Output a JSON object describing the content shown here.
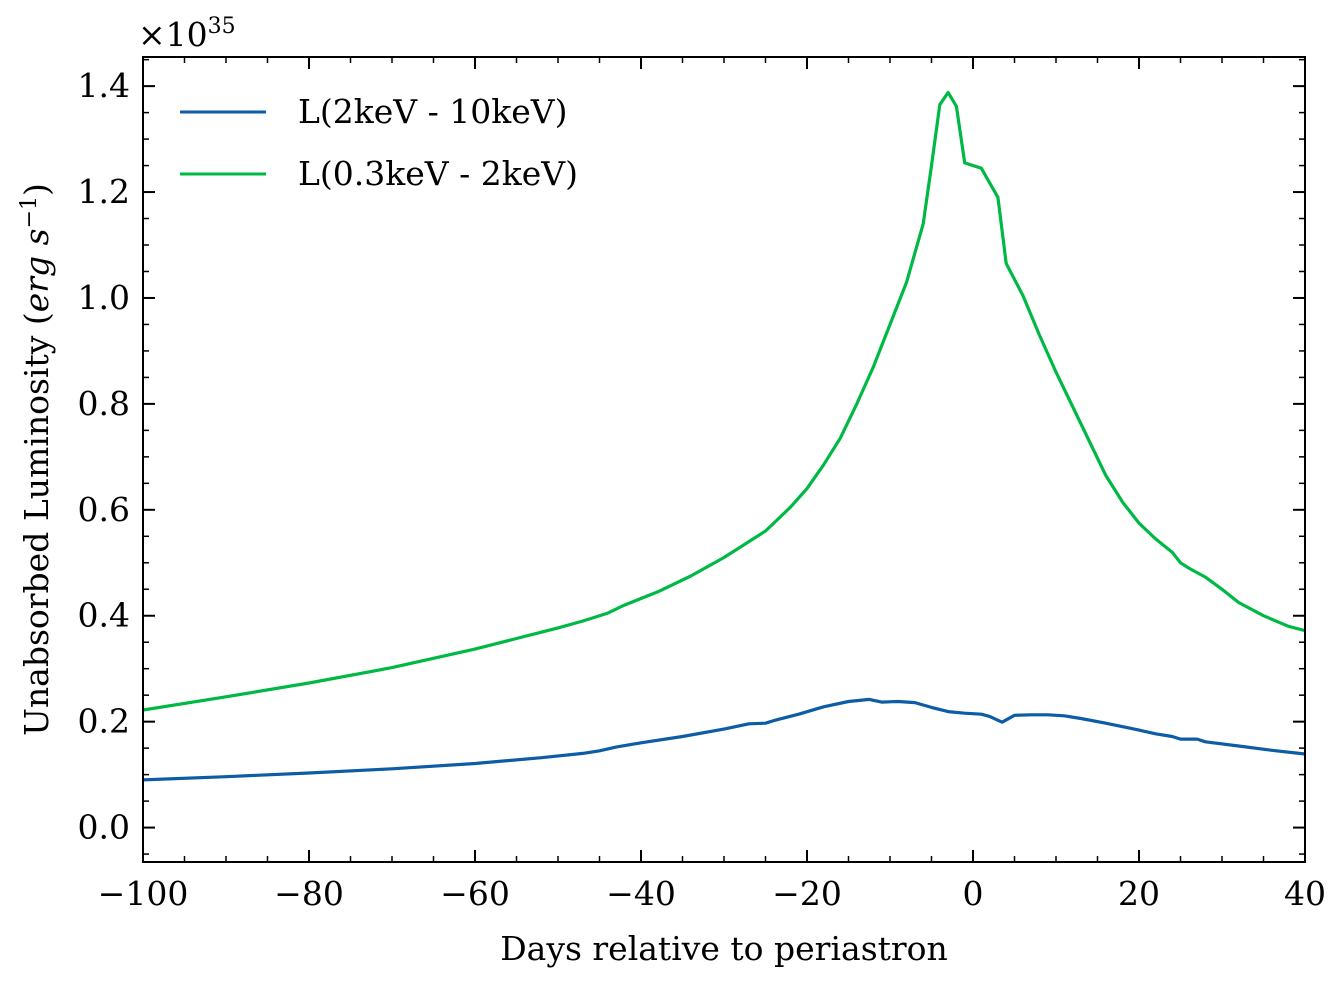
{
  "chart_data": {
    "type": "line",
    "title": "",
    "xlabel": "Days relative to periastron",
    "ylabel_main": "Unabsorbed Luminosity (",
    "ylabel_unit": "erg s",
    "ylabel_exp": "−1",
    "ylabel_close": ")",
    "y_multiplier_base": "×10",
    "y_multiplier_exp": "35",
    "xlim": [
      -100,
      40
    ],
    "ylim": [
      -0.065,
      1.455
    ],
    "xticks": [
      -100,
      -80,
      -60,
      -40,
      -20,
      0,
      20,
      40
    ],
    "xtick_labels": [
      "−100",
      "−80",
      "−60",
      "−40",
      "−20",
      "0",
      "20",
      "40"
    ],
    "yticks": [
      0.0,
      0.2,
      0.4,
      0.6,
      0.8,
      1.0,
      1.2,
      1.4
    ],
    "ytick_labels": [
      "0.0",
      "0.2",
      "0.4",
      "0.6",
      "0.8",
      "1.0",
      "1.2",
      "1.4"
    ],
    "grid": false,
    "legend_position": "top-left",
    "series": [
      {
        "name": "L(2keV - 10keV)",
        "color": "#0C5DA5",
        "points": [
          [
            -100,
            0.09
          ],
          [
            -90,
            0.096
          ],
          [
            -80,
            0.103
          ],
          [
            -70,
            0.111
          ],
          [
            -60,
            0.121
          ],
          [
            -52,
            0.132
          ],
          [
            -47,
            0.14
          ],
          [
            -45,
            0.145
          ],
          [
            -43,
            0.152
          ],
          [
            -40,
            0.16
          ],
          [
            -35,
            0.172
          ],
          [
            -30,
            0.186
          ],
          [
            -27,
            0.196
          ],
          [
            -25,
            0.197
          ],
          [
            -24,
            0.202
          ],
          [
            -21,
            0.214
          ],
          [
            -18,
            0.228
          ],
          [
            -15,
            0.238
          ],
          [
            -12.5,
            0.242
          ],
          [
            -11,
            0.237
          ],
          [
            -9,
            0.238
          ],
          [
            -7,
            0.236
          ],
          [
            -5,
            0.227
          ],
          [
            -3,
            0.219
          ],
          [
            -1,
            0.216
          ],
          [
            1,
            0.214
          ],
          [
            2,
            0.21
          ],
          [
            3.5,
            0.199
          ],
          [
            5,
            0.212
          ],
          [
            7,
            0.213
          ],
          [
            9,
            0.213
          ],
          [
            11,
            0.211
          ],
          [
            13,
            0.206
          ],
          [
            16,
            0.197
          ],
          [
            20,
            0.184
          ],
          [
            22,
            0.177
          ],
          [
            24,
            0.172
          ],
          [
            25,
            0.167
          ],
          [
            27,
            0.167
          ],
          [
            28,
            0.162
          ],
          [
            32,
            0.154
          ],
          [
            36,
            0.146
          ],
          [
            40,
            0.139
          ]
        ]
      },
      {
        "name": "L(0.3keV - 2keV)",
        "color": "#00B945",
        "points": [
          [
            -100,
            0.222
          ],
          [
            -90,
            0.247
          ],
          [
            -80,
            0.273
          ],
          [
            -70,
            0.302
          ],
          [
            -60,
            0.337
          ],
          [
            -55,
            0.357
          ],
          [
            -50,
            0.377
          ],
          [
            -47,
            0.39
          ],
          [
            -44,
            0.405
          ],
          [
            -42,
            0.42
          ],
          [
            -38,
            0.445
          ],
          [
            -34,
            0.475
          ],
          [
            -30,
            0.51
          ],
          [
            -27,
            0.54
          ],
          [
            -25,
            0.56
          ],
          [
            -24,
            0.575
          ],
          [
            -22,
            0.605
          ],
          [
            -20,
            0.64
          ],
          [
            -18,
            0.685
          ],
          [
            -16,
            0.735
          ],
          [
            -14,
            0.8
          ],
          [
            -12,
            0.87
          ],
          [
            -10,
            0.95
          ],
          [
            -8,
            1.03
          ],
          [
            -6,
            1.14
          ],
          [
            -5,
            1.25
          ],
          [
            -4,
            1.365
          ],
          [
            -3,
            1.388
          ],
          [
            -2,
            1.362
          ],
          [
            -1,
            1.255
          ],
          [
            1,
            1.245
          ],
          [
            3,
            1.19
          ],
          [
            4,
            1.065
          ],
          [
            6,
            1.005
          ],
          [
            8,
            0.93
          ],
          [
            10,
            0.86
          ],
          [
            12,
            0.795
          ],
          [
            14,
            0.73
          ],
          [
            16,
            0.665
          ],
          [
            18,
            0.615
          ],
          [
            20,
            0.575
          ],
          [
            22,
            0.545
          ],
          [
            24,
            0.52
          ],
          [
            25,
            0.5
          ],
          [
            26,
            0.49
          ],
          [
            28,
            0.473
          ],
          [
            30,
            0.45
          ],
          [
            32,
            0.425
          ],
          [
            35,
            0.4
          ],
          [
            38,
            0.38
          ],
          [
            40,
            0.372
          ]
        ]
      }
    ]
  }
}
